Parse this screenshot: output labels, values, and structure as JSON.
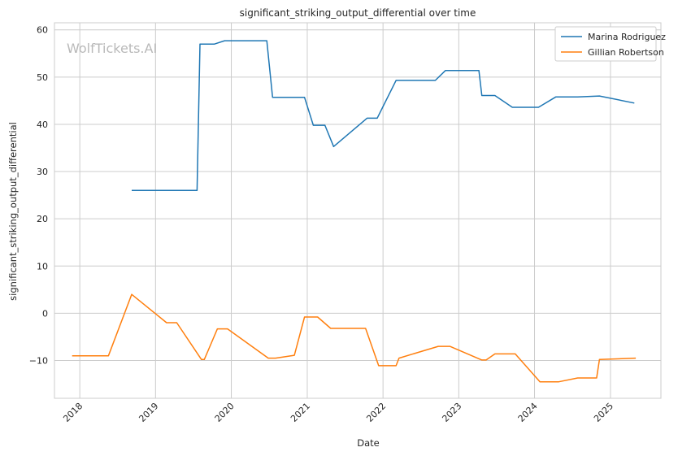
{
  "chart_data": {
    "type": "line",
    "title": "significant_striking_output_differential over time",
    "xlabel": "Date",
    "ylabel": "significant_striking_output_differential",
    "watermark": "WolfTickets.AI",
    "x_ticks": [
      "2018",
      "2019",
      "2020",
      "2021",
      "2022",
      "2023",
      "2024",
      "2025"
    ],
    "y_ticks": [
      -10,
      0,
      10,
      20,
      30,
      40,
      50,
      60
    ],
    "xlim": [
      "2017-09-01",
      "2025-09-01"
    ],
    "ylim": [
      -18,
      61.5
    ],
    "grid": true,
    "legend": "top-right",
    "colors": {
      "Marina Rodriguez": "#1f77b4",
      "Gillian Robertson": "#ff7f0e",
      "grid": "#cccccc",
      "axes": "#cccccc"
    },
    "series": [
      {
        "name": "Marina Rodriguez",
        "points": [
          [
            "2018-09-08",
            26.0
          ],
          [
            "2019-07-20",
            26.0
          ],
          [
            "2019-08-03",
            57.0
          ],
          [
            "2019-10-12",
            57.0
          ],
          [
            "2019-11-30",
            57.7
          ],
          [
            "2020-06-20",
            57.7
          ],
          [
            "2020-07-18",
            45.7
          ],
          [
            "2020-12-19",
            45.7
          ],
          [
            "2021-01-30",
            39.8
          ],
          [
            "2021-03-27",
            39.8
          ],
          [
            "2021-05-08",
            35.3
          ],
          [
            "2021-10-16",
            41.3
          ],
          [
            "2021-12-04",
            41.3
          ],
          [
            "2022-03-05",
            49.3
          ],
          [
            "2022-09-10",
            49.3
          ],
          [
            "2022-10-29",
            51.4
          ],
          [
            "2023-04-08",
            51.4
          ],
          [
            "2023-04-22",
            46.1
          ],
          [
            "2023-06-24",
            46.1
          ],
          [
            "2023-09-16",
            43.6
          ],
          [
            "2024-01-20",
            43.6
          ],
          [
            "2024-04-13",
            45.8
          ],
          [
            "2024-07-27",
            45.8
          ],
          [
            "2024-11-09",
            46.0
          ],
          [
            "2025-04-26",
            44.5
          ]
        ]
      },
      {
        "name": "Gillian Robertson",
        "points": [
          [
            "2017-11-25",
            -9.0
          ],
          [
            "2018-05-19",
            -9.0
          ],
          [
            "2018-09-08",
            4.0
          ],
          [
            "2019-02-23",
            -2.0
          ],
          [
            "2019-04-13",
            -2.0
          ],
          [
            "2019-08-10",
            -9.8
          ],
          [
            "2019-08-24",
            -9.8
          ],
          [
            "2019-10-26",
            -3.3
          ],
          [
            "2019-12-14",
            -3.3
          ],
          [
            "2020-06-27",
            -9.5
          ],
          [
            "2020-08-01",
            -9.5
          ],
          [
            "2020-10-31",
            -8.9
          ],
          [
            "2020-12-19",
            -0.8
          ],
          [
            "2021-02-20",
            -0.8
          ],
          [
            "2021-04-24",
            -3.2
          ],
          [
            "2021-10-09",
            -3.2
          ],
          [
            "2021-12-11",
            -11.1
          ],
          [
            "2022-03-05",
            -11.1
          ],
          [
            "2022-03-19",
            -9.5
          ],
          [
            "2022-09-24",
            -7.0
          ],
          [
            "2022-11-19",
            -7.0
          ],
          [
            "2023-04-22",
            -9.9
          ],
          [
            "2023-05-13",
            -9.9
          ],
          [
            "2023-06-24",
            -8.6
          ],
          [
            "2023-09-30",
            -8.6
          ],
          [
            "2024-01-27",
            -14.5
          ],
          [
            "2024-04-27",
            -14.5
          ],
          [
            "2024-07-27",
            -13.7
          ],
          [
            "2024-10-26",
            -13.7
          ],
          [
            "2024-11-09",
            -9.8
          ],
          [
            "2025-05-03",
            -9.5
          ]
        ]
      }
    ]
  }
}
